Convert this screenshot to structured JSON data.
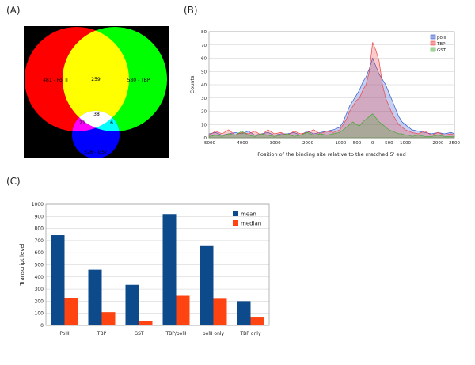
{
  "panels": {
    "a": "(A)",
    "b": "(B)",
    "c": "(C)"
  },
  "colors": {
    "polii": "#ff0000",
    "tbp": "#00ff00",
    "gst": "#0000ff",
    "polii_tbp": "#ffff00",
    "polii_gst": "#ff00ff",
    "tbp_gst": "#00ffff",
    "all": "#ffffff",
    "venn_bg": "#000000",
    "area_polii": "#3355cc",
    "area_tbp": "#ee4444",
    "area_gst": "#44aa33",
    "bar_mean": "#0d4a8c",
    "bar_median": "#ff4411"
  },
  "chart_data": [
    {
      "type": "venn",
      "sets": [
        "Pol II",
        "TBP",
        "GST"
      ],
      "regions": [
        {
          "label": "481 - Pol II",
          "sets": [
            "Pol II"
          ],
          "value": 481
        },
        {
          "label": "580 - TBP",
          "sets": [
            "TBP"
          ],
          "value": 580
        },
        {
          "label": "326 - GST",
          "sets": [
            "GST"
          ],
          "value": 326
        },
        {
          "label": "259",
          "sets": [
            "Pol II",
            "TBP"
          ],
          "value": 259
        },
        {
          "label": "21",
          "sets": [
            "Pol II",
            "GST"
          ],
          "value": 21
        },
        {
          "label": "6",
          "sets": [
            "TBP",
            "GST"
          ],
          "value": 6
        },
        {
          "label": "38",
          "sets": [
            "Pol II",
            "TBP",
            "GST"
          ],
          "value": 38
        }
      ]
    },
    {
      "type": "area",
      "xlabel": "Position of the binding site relative to the matched 5' end",
      "ylabel": "Counts",
      "xlim": [
        -5000,
        2500
      ],
      "ylim": [
        0,
        80
      ],
      "xticks": [
        -5000,
        -4000,
        -3000,
        -2000,
        -1000,
        -500,
        0,
        500,
        1000,
        2000,
        2500
      ],
      "yticks": [
        0,
        10,
        20,
        30,
        40,
        50,
        60,
        70,
        80
      ],
      "legend_position": "top-right",
      "series": [
        {
          "name": "polII",
          "x": [
            -5000,
            -4800,
            -4600,
            -4400,
            -4200,
            -4000,
            -3800,
            -3600,
            -3400,
            -3200,
            -3000,
            -2800,
            -2600,
            -2400,
            -2200,
            -2000,
            -1800,
            -1600,
            -1400,
            -1200,
            -1000,
            -900,
            -800,
            -700,
            -600,
            -500,
            -400,
            -300,
            -200,
            -100,
            0,
            100,
            200,
            300,
            400,
            500,
            600,
            700,
            800,
            900,
            1000,
            1100,
            1200,
            1400,
            1600,
            1800,
            2000,
            2200,
            2400,
            2500
          ],
          "y": [
            3,
            4,
            2,
            3,
            4,
            3,
            5,
            2,
            3,
            4,
            2,
            3,
            3,
            4,
            2,
            5,
            3,
            4,
            5,
            6,
            8,
            12,
            18,
            24,
            28,
            32,
            36,
            42,
            46,
            52,
            60,
            54,
            48,
            44,
            40,
            34,
            28,
            22,
            16,
            12,
            10,
            8,
            6,
            5,
            4,
            3,
            4,
            3,
            4,
            3
          ]
        },
        {
          "name": "TBP",
          "x": [
            -5000,
            -4800,
            -4600,
            -4400,
            -4200,
            -4000,
            -3800,
            -3600,
            -3400,
            -3200,
            -3000,
            -2800,
            -2600,
            -2400,
            -2200,
            -2000,
            -1800,
            -1600,
            -1400,
            -1200,
            -1000,
            -900,
            -800,
            -700,
            -600,
            -500,
            -400,
            -300,
            -200,
            -100,
            0,
            100,
            200,
            300,
            400,
            500,
            600,
            700,
            800,
            900,
            1000,
            1100,
            1200,
            1400,
            1600,
            1800,
            2000,
            2200,
            2400,
            2500
          ],
          "y": [
            2,
            5,
            3,
            6,
            2,
            4,
            3,
            5,
            2,
            6,
            3,
            4,
            2,
            5,
            3,
            4,
            6,
            3,
            5,
            4,
            6,
            10,
            14,
            20,
            24,
            28,
            30,
            36,
            40,
            50,
            72,
            66,
            58,
            40,
            30,
            24,
            18,
            14,
            10,
            8,
            6,
            5,
            4,
            3,
            5,
            2,
            4,
            2,
            3,
            2
          ]
        },
        {
          "name": "GST",
          "x": [
            -5000,
            -4800,
            -4600,
            -4400,
            -4200,
            -4000,
            -3800,
            -3600,
            -3400,
            -3200,
            -3000,
            -2800,
            -2600,
            -2400,
            -2200,
            -2000,
            -1800,
            -1600,
            -1400,
            -1200,
            -1000,
            -900,
            -800,
            -700,
            -600,
            -500,
            -400,
            -300,
            -200,
            -100,
            0,
            100,
            200,
            300,
            400,
            500,
            600,
            700,
            800,
            900,
            1000,
            1100,
            1200,
            1400,
            1600,
            1800,
            2000,
            2200,
            2400,
            2500
          ],
          "y": [
            1,
            2,
            1,
            3,
            2,
            5,
            2,
            1,
            3,
            2,
            1,
            2,
            3,
            1,
            2,
            4,
            2,
            3,
            2,
            3,
            4,
            6,
            8,
            10,
            12,
            10,
            9,
            12,
            14,
            16,
            18,
            15,
            12,
            10,
            8,
            6,
            5,
            4,
            3,
            3,
            2,
            2,
            1,
            2,
            1,
            1,
            2,
            1,
            1,
            1
          ]
        }
      ]
    },
    {
      "type": "bar",
      "ylabel": "Transcript level",
      "ylim": [
        0,
        1000
      ],
      "yticks": [
        0,
        100,
        200,
        300,
        400,
        500,
        600,
        700,
        800,
        900,
        1000
      ],
      "categories": [
        "PolII",
        "TBP",
        "GST",
        "TBP/polII",
        "polII only",
        "TBP only"
      ],
      "legend_position": "top-right",
      "series": [
        {
          "name": "mean",
          "values": [
            745,
            460,
            335,
            920,
            655,
            200
          ]
        },
        {
          "name": "median",
          "values": [
            225,
            110,
            35,
            245,
            220,
            65
          ]
        }
      ]
    }
  ]
}
